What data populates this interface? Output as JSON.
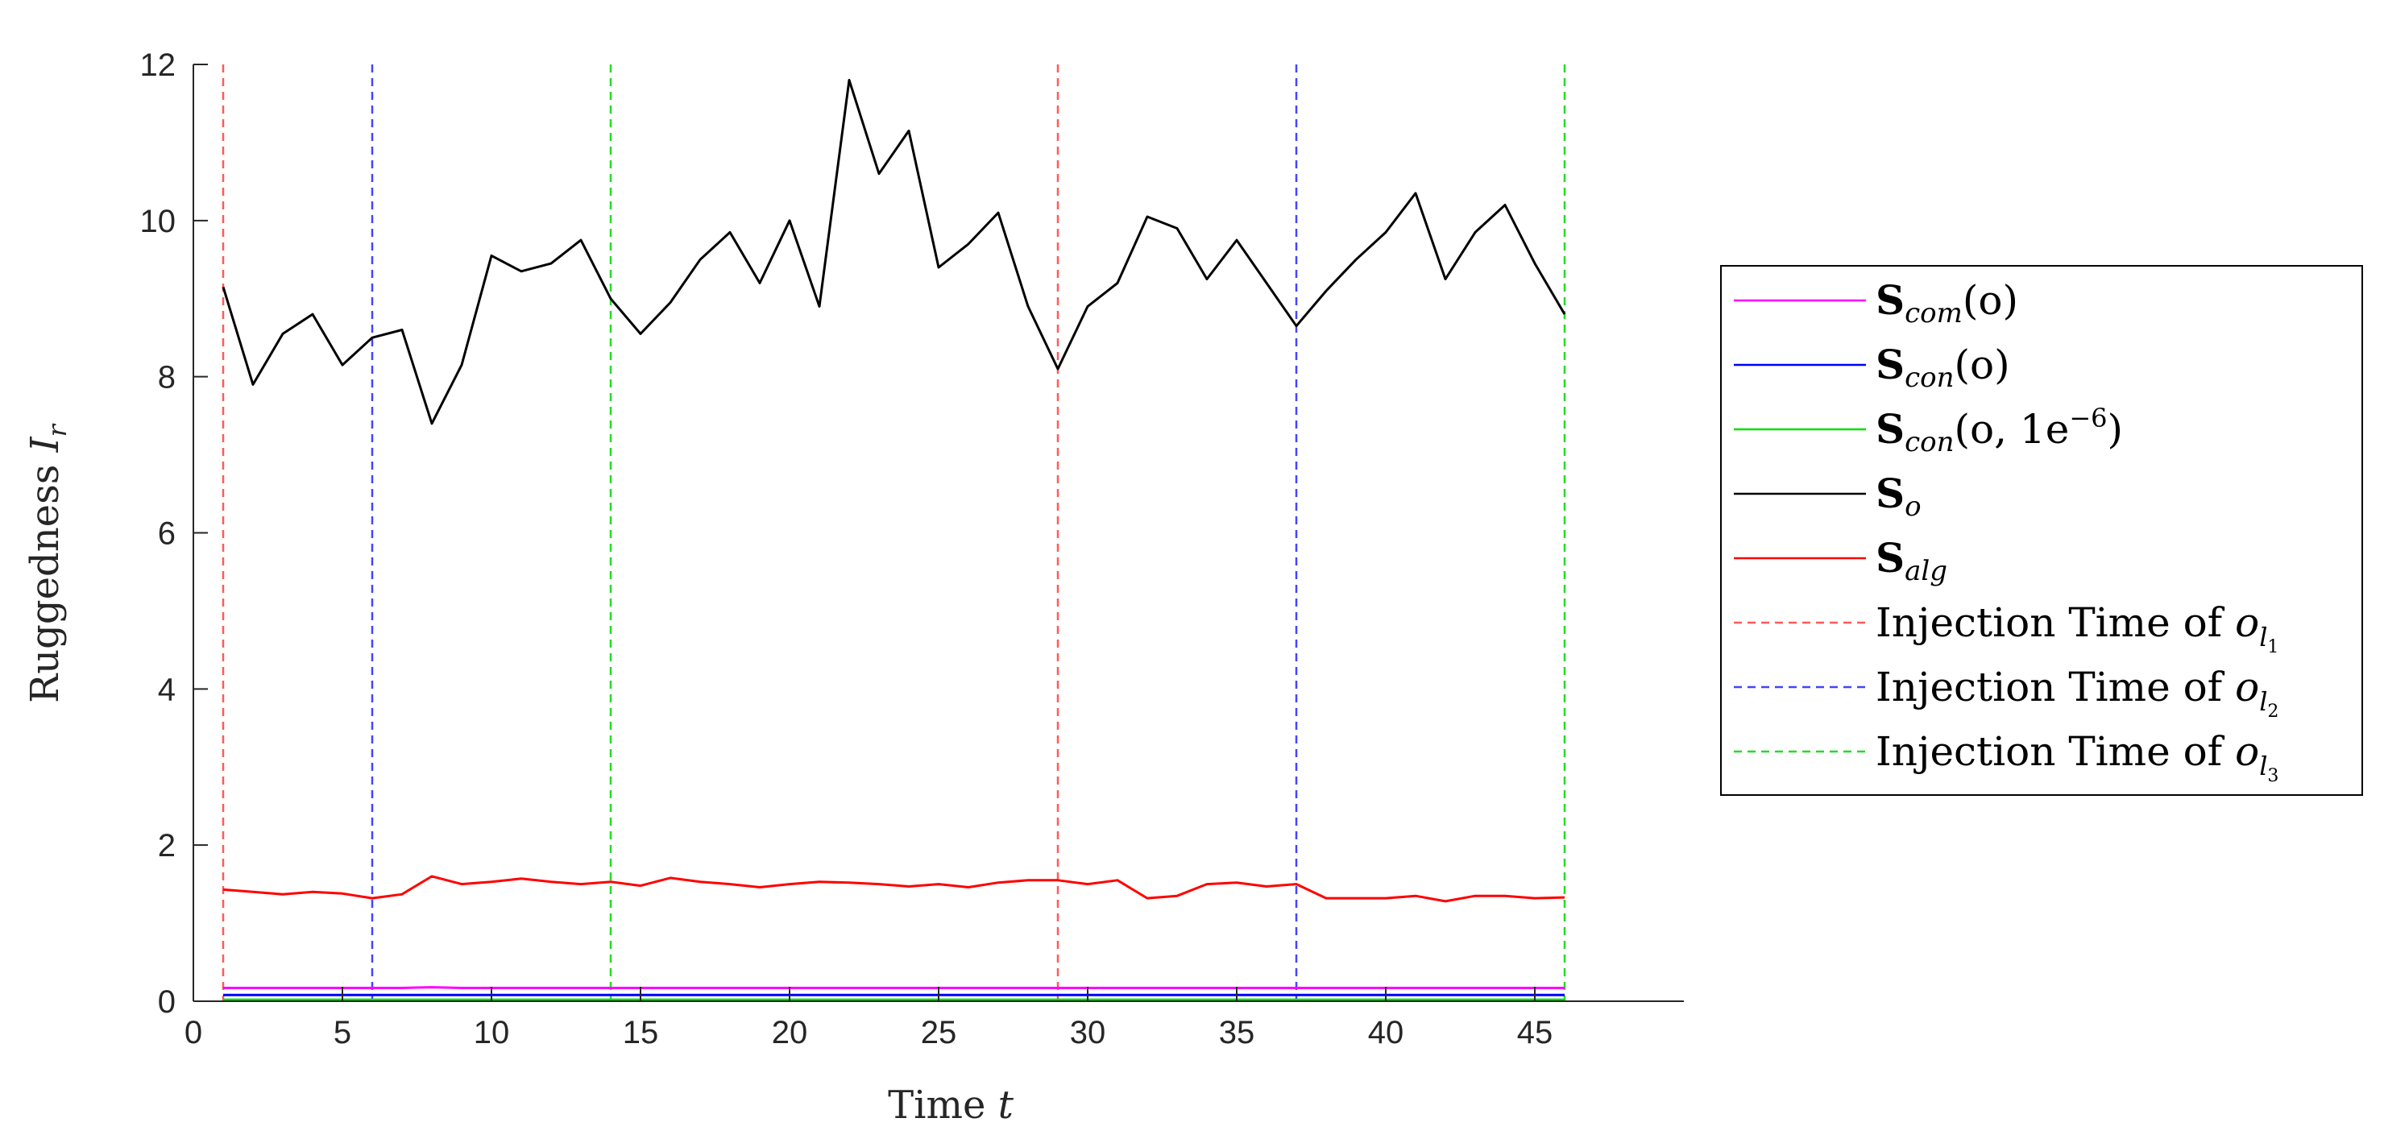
{
  "chart_data": {
    "type": "line",
    "xlabel": {
      "prefix": "Time ",
      "var": "t"
    },
    "ylabel": {
      "prefix": "Ruggedness ",
      "var": "I",
      "sub": "r"
    },
    "xlim": [
      0,
      50
    ],
    "ylim": [
      0,
      12
    ],
    "xticks": [
      0,
      5,
      10,
      15,
      20,
      25,
      30,
      35,
      40,
      45
    ],
    "yticks": [
      0,
      2,
      4,
      6,
      8,
      10,
      12
    ],
    "grid": false,
    "legend_position": "outside-right",
    "series": [
      {
        "key": "Scom",
        "color": "#ff00ff",
        "style": "solid",
        "legend": {
          "base": "S",
          "sub": "com",
          "suffix": "(o)"
        },
        "x": [
          1,
          2,
          3,
          4,
          5,
          6,
          7,
          8,
          9,
          10,
          11,
          12,
          13,
          14,
          15,
          16,
          17,
          18,
          19,
          20,
          21,
          22,
          23,
          24,
          25,
          26,
          27,
          28,
          29,
          30,
          31,
          32,
          33,
          34,
          35,
          36,
          37,
          38,
          39,
          40,
          41,
          42,
          43,
          44,
          45,
          46
        ],
        "y": [
          0.17,
          0.17,
          0.17,
          0.17,
          0.17,
          0.17,
          0.17,
          0.18,
          0.17,
          0.17,
          0.17,
          0.17,
          0.17,
          0.17,
          0.17,
          0.17,
          0.17,
          0.17,
          0.17,
          0.17,
          0.17,
          0.17,
          0.17,
          0.17,
          0.17,
          0.17,
          0.17,
          0.17,
          0.17,
          0.17,
          0.17,
          0.17,
          0.17,
          0.17,
          0.17,
          0.17,
          0.17,
          0.17,
          0.17,
          0.17,
          0.17,
          0.17,
          0.17,
          0.17,
          0.17,
          0.17
        ]
      },
      {
        "key": "Scon",
        "color": "#0000ff",
        "style": "solid",
        "legend": {
          "base": "S",
          "sub": "con",
          "suffix": "(o)"
        },
        "x": [
          1,
          46
        ],
        "y": [
          0.08,
          0.08
        ]
      },
      {
        "key": "Scon1e6",
        "color": "#00dd00",
        "style": "solid",
        "legend": {
          "base": "S",
          "sub": "con",
          "suffix": "(o, 1e",
          "sup": "−6",
          "tail": ")"
        },
        "x": [
          1,
          46
        ],
        "y": [
          0.02,
          0.02
        ]
      },
      {
        "key": "So",
        "color": "#000000",
        "style": "solid",
        "legend": {
          "base": "S",
          "sub": "o"
        },
        "x": [
          1,
          2,
          3,
          4,
          5,
          6,
          7,
          8,
          9,
          10,
          11,
          12,
          13,
          14,
          15,
          16,
          17,
          18,
          19,
          20,
          21,
          22,
          23,
          24,
          25,
          26,
          27,
          28,
          29,
          30,
          31,
          32,
          33,
          34,
          35,
          36,
          37,
          38,
          39,
          40,
          41,
          42,
          43,
          44,
          45,
          46
        ],
        "y": [
          9.15,
          7.9,
          8.55,
          8.8,
          8.15,
          8.5,
          8.6,
          7.4,
          8.15,
          9.55,
          9.35,
          9.45,
          9.75,
          9.0,
          8.55,
          8.95,
          9.5,
          9.85,
          9.2,
          10.0,
          8.9,
          11.8,
          10.6,
          11.15,
          9.4,
          9.7,
          10.1,
          8.9,
          8.1,
          8.9,
          9.2,
          10.05,
          9.9,
          9.25,
          9.75,
          9.2,
          8.65,
          9.1,
          9.5,
          9.85,
          10.35,
          9.25,
          9.85,
          10.2,
          9.45,
          8.8
        ]
      },
      {
        "key": "Salg",
        "color": "#ff0000",
        "style": "solid",
        "legend": {
          "base": "S",
          "sub": "alg"
        },
        "x": [
          1,
          2,
          3,
          4,
          5,
          6,
          7,
          8,
          9,
          10,
          11,
          12,
          13,
          14,
          15,
          16,
          17,
          18,
          19,
          20,
          21,
          22,
          23,
          24,
          25,
          26,
          27,
          28,
          29,
          30,
          31,
          32,
          33,
          34,
          35,
          36,
          37,
          38,
          39,
          40,
          41,
          42,
          43,
          44,
          45,
          46
        ],
        "y": [
          1.43,
          1.4,
          1.37,
          1.4,
          1.38,
          1.32,
          1.37,
          1.6,
          1.5,
          1.53,
          1.57,
          1.53,
          1.5,
          1.53,
          1.48,
          1.58,
          1.53,
          1.5,
          1.46,
          1.5,
          1.53,
          1.52,
          1.5,
          1.47,
          1.5,
          1.46,
          1.52,
          1.55,
          1.55,
          1.5,
          1.55,
          1.32,
          1.35,
          1.5,
          1.52,
          1.47,
          1.5,
          1.32,
          1.32,
          1.32,
          1.35,
          1.28,
          1.35,
          1.35,
          1.32,
          1.33
        ]
      }
    ],
    "vlines": [
      {
        "key": "inj1",
        "color": "#ff5a5a",
        "x": [
          1,
          29
        ],
        "legend": {
          "text": "Injection Time of ",
          "var": "o",
          "sub": "l",
          "subsub": "1"
        }
      },
      {
        "key": "inj2",
        "color": "#4444ff",
        "x": [
          6,
          37
        ],
        "legend": {
          "text": "Injection Time of ",
          "var": "o",
          "sub": "l",
          "subsub": "2"
        }
      },
      {
        "key": "inj3",
        "color": "#22dd22",
        "x": [
          14,
          46
        ],
        "legend": {
          "text": "Injection Time of ",
          "var": "o",
          "sub": "l",
          "subsub": "3"
        }
      }
    ]
  }
}
